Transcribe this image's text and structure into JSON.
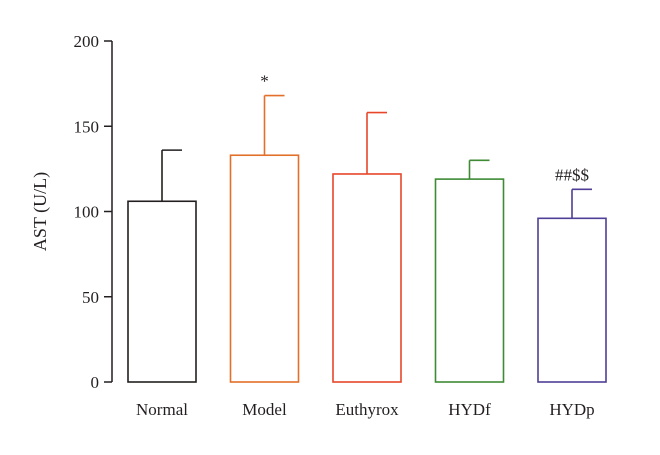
{
  "chart_data": {
    "type": "bar",
    "categories": [
      "Normal",
      "Model",
      "Euthyrox",
      "HYDf",
      "HYDp"
    ],
    "values": [
      106,
      133,
      122,
      119,
      96
    ],
    "error": [
      30,
      35,
      36,
      11,
      17
    ],
    "colors": [
      "#231f20",
      "#e2702a",
      "#e8462a",
      "#3f8a35",
      "#4f3f96"
    ],
    "annotations": [
      "",
      "*",
      "",
      "",
      "##$$"
    ],
    "ylabel": "AST (U/L)",
    "xlabel": "",
    "title": "",
    "ylim": [
      0,
      200
    ],
    "yticks": [
      0,
      50,
      100,
      150,
      200
    ],
    "legend": "none",
    "grid": false
  }
}
